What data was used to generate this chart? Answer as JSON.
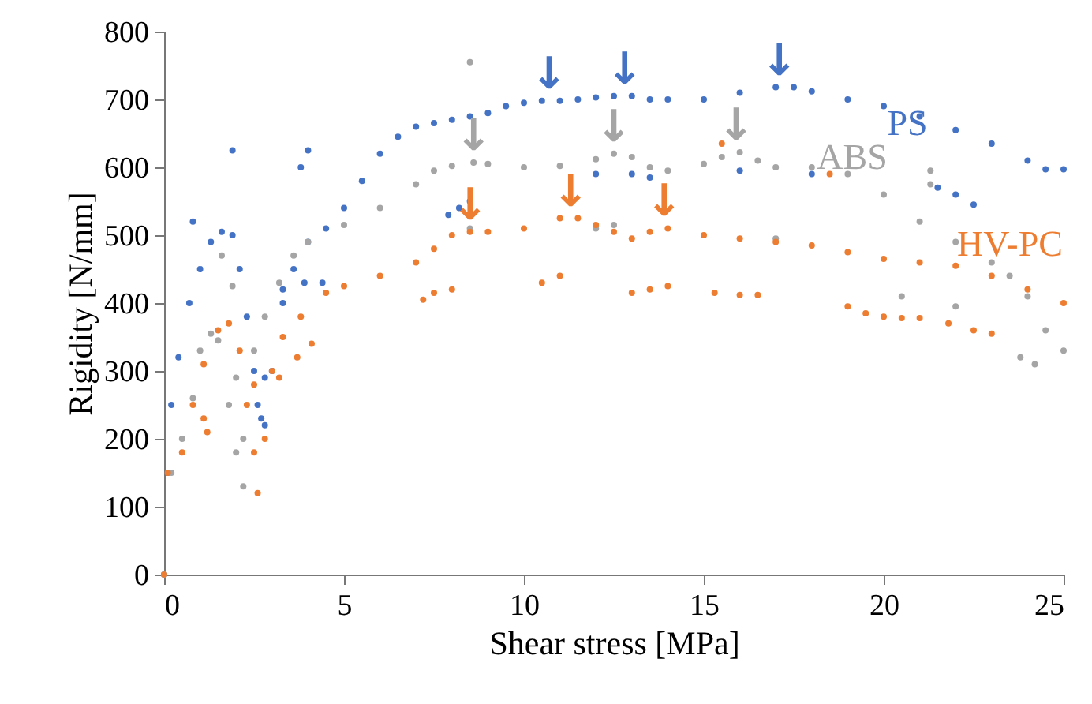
{
  "chart_data": {
    "type": "scatter",
    "xlabel": "Shear stress [MPa]",
    "ylabel": "Rigidity [N/mm]",
    "xlim": [
      0,
      25
    ],
    "ylim": [
      0,
      800
    ],
    "xticks": [
      0,
      5,
      10,
      15,
      20,
      25
    ],
    "yticks": [
      0,
      100,
      200,
      300,
      400,
      500,
      600,
      700,
      800
    ],
    "grid": false,
    "marker": "circle",
    "series": [
      {
        "name": "PS",
        "color": "#4472c4",
        "x": [
          0,
          0.1,
          0.2,
          0.4,
          0.7,
          1.0,
          1.3,
          1.6,
          1.9,
          2.1,
          2.3,
          2.5,
          2.7,
          2.8,
          3.0,
          3.3,
          3.6,
          4.0,
          4.5,
          5,
          5.5,
          6,
          6.5,
          7,
          7.5,
          8,
          8.5,
          9,
          9.5,
          10,
          10.5,
          11,
          11.5,
          12,
          12.5,
          13,
          13.5,
          14,
          15,
          16,
          17,
          17.5,
          18,
          19,
          20,
          21,
          22,
          23,
          24,
          24.5,
          25,
          0.8,
          1.9,
          3.8,
          4.0,
          7.9,
          8.2,
          8.5,
          12,
          13,
          13.5,
          16,
          18,
          21.5,
          22,
          22.5,
          2.6,
          2.8,
          3.3,
          3.9,
          4.4
        ],
        "values": [
          0,
          150,
          250,
          320,
          400,
          450,
          490,
          505,
          500,
          450,
          380,
          300,
          230,
          220,
          300,
          400,
          450,
          490,
          510,
          540,
          580,
          620,
          645,
          660,
          665,
          670,
          675,
          680,
          690,
          695,
          698,
          698,
          700,
          703,
          705,
          705,
          700,
          700,
          700,
          710,
          718,
          718,
          712,
          700,
          690,
          675,
          655,
          635,
          610,
          597,
          597,
          520,
          625,
          600,
          625,
          530,
          540,
          550,
          590,
          590,
          585,
          595,
          590,
          570,
          560,
          545,
          250,
          290,
          420,
          430,
          430
        ]
      },
      {
        "name": "ABS",
        "color": "#a5a5a5",
        "x": [
          0,
          0.2,
          0.5,
          0.8,
          1.0,
          1.3,
          1.5,
          1.8,
          2.0,
          2.2,
          2.5,
          2.8,
          3.2,
          3.6,
          4.0,
          5,
          6,
          7,
          7.5,
          8,
          8.6,
          9,
          10,
          11,
          12,
          12.5,
          13,
          13.5,
          14,
          15,
          15.5,
          16,
          16.5,
          17,
          18,
          19,
          20,
          21,
          22,
          23,
          23.5,
          24,
          24.5,
          25,
          8.5,
          1.6,
          1.9,
          2.0,
          2.2,
          8.5,
          12,
          12.5,
          17,
          20.5,
          21.3,
          21.3,
          22,
          23.8,
          24.2
        ],
        "values": [
          0,
          150,
          200,
          260,
          330,
          355,
          345,
          250,
          180,
          200,
          330,
          380,
          430,
          470,
          490,
          515,
          540,
          575,
          595,
          602,
          607,
          605,
          600,
          602,
          612,
          620,
          615,
          600,
          595,
          605,
          615,
          622,
          610,
          600,
          600,
          590,
          560,
          520,
          490,
          460,
          440,
          410,
          360,
          330,
          755,
          470,
          425,
          290,
          130,
          510,
          510,
          515,
          495,
          410,
          595,
          575,
          395,
          320,
          310
        ]
      },
      {
        "name": "HV-PC",
        "color": "#ed7d31",
        "x": [
          0,
          0.1,
          0.5,
          0.8,
          1.1,
          1.5,
          1.8,
          2.1,
          2.3,
          2.5,
          2.6,
          2.8,
          3.0,
          3.3,
          3.8,
          4.5,
          5,
          6,
          7,
          7.5,
          8,
          8.5,
          9,
          10,
          11,
          11.5,
          12,
          12.5,
          13,
          13.5,
          14,
          15,
          16,
          17,
          18,
          19,
          20,
          21,
          22,
          23,
          24,
          25,
          2.5,
          3.2,
          3.7,
          4.1,
          7.2,
          7.5,
          8,
          10.5,
          11,
          13,
          13.5,
          14,
          15.3,
          16,
          16.5,
          19,
          19.5,
          20,
          20.5,
          21,
          21.8,
          22.5,
          23,
          15.5,
          18.5,
          1.2,
          1.1
        ],
        "values": [
          0,
          150,
          180,
          250,
          310,
          360,
          370,
          330,
          250,
          180,
          120,
          200,
          300,
          350,
          380,
          415,
          425,
          440,
          460,
          480,
          500,
          505,
          505,
          510,
          525,
          525,
          515,
          505,
          495,
          505,
          510,
          500,
          495,
          490,
          485,
          475,
          465,
          460,
          455,
          440,
          420,
          400,
          280,
          290,
          320,
          340,
          405,
          415,
          420,
          430,
          440,
          415,
          420,
          425,
          415,
          412,
          412,
          395,
          385,
          380,
          378,
          378,
          370,
          360,
          355,
          635,
          590,
          210,
          230
        ]
      }
    ],
    "annotations": [
      {
        "text": "↓",
        "x": 10.7,
        "y": 698
      },
      {
        "text": "↓",
        "x": 12.8,
        "y": 705
      },
      {
        "text": "↓",
        "x": 17.1,
        "y": 718
      },
      {
        "text": "↓",
        "x": 8.6,
        "y": 607
      },
      {
        "text": "↓",
        "x": 12.5,
        "y": 620
      },
      {
        "text": "↓",
        "x": 15.9,
        "y": 622
      },
      {
        "text": "↓",
        "x": 8.5,
        "y": 505
      },
      {
        "text": "↓",
        "x": 11.3,
        "y": 525
      },
      {
        "text": "↓",
        "x": 13.9,
        "y": 510
      }
    ]
  }
}
